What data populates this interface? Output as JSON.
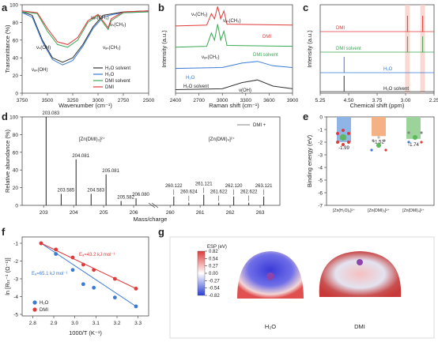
{
  "colors": {
    "black": "#333333",
    "blue": "#3a7bd5",
    "green": "#3aa655",
    "red": "#e03a3a",
    "pinkbar": "#f4b183",
    "bluebar": "#8fb4e6",
    "greenbar": "#9bd39b"
  },
  "panels": {
    "a": {
      "letter": "a",
      "ylabel": "Transmittance (%)",
      "xlabel": "Wavenumber (cm⁻¹)",
      "xticks": [
        "3750",
        "3500",
        "3250",
        "3000",
        "2750",
        "2500"
      ],
      "yticks": [
        "100",
        "80",
        "60",
        "40",
        "20",
        "0"
      ],
      "annotations": [
        "νₐₛ(CH₃)",
        "νₛ(CH₃)",
        "νₛ(OH)",
        "νₐₛ(CH₂)",
        "νₐₛ(OH)"
      ],
      "legend": [
        "H₂O solvent",
        "H₂O",
        "DMI solvent",
        "DMI"
      ]
    },
    "b": {
      "letter": "b",
      "ylabel": "Intensity (a.u.)",
      "xlabel": "Raman shift (cm⁻¹)",
      "xticks": [
        "2400",
        "2700",
        "3000",
        "3300",
        "3600",
        "3900"
      ],
      "annotations": [
        "νₛ(CH₃)",
        "νₐₛ(CH₃)",
        "νₐₛ(CH₂)",
        "ν(OH)"
      ],
      "labels": [
        "DMI",
        "DMI solvent",
        "H₂O",
        "H₂O solvent"
      ]
    },
    "c": {
      "letter": "c",
      "ylabel": "Intensity (a.u.)",
      "xlabel": "Chemical shift (ppm)",
      "xticks": [
        "5.25",
        "4.50",
        "3.75",
        "3.00",
        "2.25"
      ],
      "labels": [
        "DMI",
        "DMI solvent",
        "H₂O",
        "H₂O solvent"
      ]
    },
    "d": {
      "letter": "d",
      "ylabel": "Relative abundance (%)",
      "xlabel": "Mass/charge",
      "legend": "DMI +",
      "yticks": [
        "100",
        "80",
        "60",
        "40",
        "20",
        "0"
      ],
      "xticks_left": [
        "203",
        "204",
        "205",
        "206"
      ],
      "xticks_right": [
        "260",
        "261",
        "262",
        "263"
      ],
      "group_labels": [
        "[Zn(DMI)₃]²⁺",
        "[Zn(DMI)₄]²⁺"
      ]
    },
    "e": {
      "letter": "e",
      "ylabel": "Binding energy (eV)",
      "yticks": [
        "0",
        "-1",
        "-2",
        "-3",
        "-4",
        "-5",
        "-6",
        "-7"
      ]
    },
    "f": {
      "letter": "f",
      "ylabel": "ln [Rₜₜ⁻¹ (Ω⁻¹)]",
      "xlabel": "1000/T (K⁻¹)",
      "xticks": [
        "2.8",
        "2.9",
        "3.0",
        "3.1",
        "3.2",
        "3.3"
      ],
      "yticks": [
        "-1",
        "-2",
        "-3",
        "-4",
        "-5"
      ],
      "ea_dmi": "Eₐ=43.2 kJ mol⁻¹",
      "ea_h2o": "Eₐ=65.1 kJ mol⁻¹",
      "legend": [
        "H₂O",
        "DMI"
      ]
    },
    "g": {
      "letter": "g",
      "colorbar_title": "ESP (eV)",
      "colorbar_ticks": [
        "0.82",
        "0.54",
        "0.27",
        "0.00",
        "-0.27",
        "-0.54",
        "-0.82"
      ],
      "labels": [
        "H₂O",
        "DMI"
      ]
    }
  },
  "chart_data": [
    {
      "panel": "a",
      "type": "line",
      "xlim": [
        3750,
        2500
      ],
      "ylim": [
        0,
        100
      ],
      "series": [
        {
          "name": "H₂O solvent",
          "points": [
            [
              3750,
              92
            ],
            [
              3650,
              88
            ],
            [
              3550,
              60
            ],
            [
              3450,
              40
            ],
            [
              3350,
              35
            ],
            [
              3250,
              40
            ],
            [
              3150,
              55
            ],
            [
              3050,
              75
            ],
            [
              2950,
              88
            ],
            [
              2850,
              90
            ],
            [
              2750,
              92
            ],
            [
              2500,
              93
            ]
          ]
        },
        {
          "name": "H₂O",
          "points": [
            [
              3750,
              91
            ],
            [
              3650,
              86
            ],
            [
              3550,
              58
            ],
            [
              3450,
              38
            ],
            [
              3350,
              32
            ],
            [
              3250,
              37
            ],
            [
              3150,
              53
            ],
            [
              3050,
              73
            ],
            [
              2950,
              86
            ],
            [
              2850,
              89
            ],
            [
              2750,
              91
            ],
            [
              2500,
              92
            ]
          ]
        },
        {
          "name": "DMI solvent",
          "points": [
            [
              3750,
              92
            ],
            [
              3600,
              90
            ],
            [
              3500,
              70
            ],
            [
              3400,
              55
            ],
            [
              3300,
              52
            ],
            [
              3200,
              60
            ],
            [
              3100,
              80
            ],
            [
              3000,
              88
            ],
            [
              2940,
              78
            ],
            [
              2900,
              72
            ],
            [
              2870,
              82
            ],
            [
              2750,
              91
            ],
            [
              2500,
              92
            ]
          ]
        },
        {
          "name": "DMI",
          "points": [
            [
              3750,
              93
            ],
            [
              3600,
              91
            ],
            [
              3500,
              73
            ],
            [
              3400,
              58
            ],
            [
              3300,
              55
            ],
            [
              3200,
              63
            ],
            [
              3100,
              82
            ],
            [
              3000,
              89
            ],
            [
              2940,
              80
            ],
            [
              2900,
              74
            ],
            [
              2870,
              84
            ],
            [
              2750,
              92
            ],
            [
              2500,
              93
            ]
          ]
        }
      ]
    },
    {
      "panel": "b",
      "type": "line",
      "xlim": [
        2400,
        3900
      ],
      "series": [
        {
          "name": "DMI",
          "points": [
            [
              2400,
              0.76
            ],
            [
              2800,
              0.77
            ],
            [
              2860,
              0.9
            ],
            [
              2900,
              0.84
            ],
            [
              2940,
              0.98
            ],
            [
              2980,
              0.84
            ],
            [
              3020,
              0.93
            ],
            [
              3060,
              0.78
            ],
            [
              3900,
              0.77
            ]
          ]
        },
        {
          "name": "DMI solvent",
          "points": [
            [
              2400,
              0.52
            ],
            [
              2800,
              0.53
            ],
            [
              2860,
              0.68
            ],
            [
              2900,
              0.6
            ],
            [
              2940,
              0.78
            ],
            [
              2980,
              0.6
            ],
            [
              3020,
              0.7
            ],
            [
              3060,
              0.54
            ],
            [
              3900,
              0.53
            ]
          ]
        },
        {
          "name": "H₂O",
          "points": [
            [
              2400,
              0.28
            ],
            [
              3000,
              0.29
            ],
            [
              3250,
              0.34
            ],
            [
              3450,
              0.36
            ],
            [
              3650,
              0.31
            ],
            [
              3900,
              0.29
            ]
          ]
        },
        {
          "name": "H₂O solvent",
          "points": [
            [
              2400,
              0.04
            ],
            [
              3000,
              0.05
            ],
            [
              3250,
              0.12
            ],
            [
              3450,
              0.15
            ],
            [
              3650,
              0.08
            ],
            [
              3900,
              0.05
            ]
          ]
        }
      ]
    },
    {
      "panel": "c",
      "type": "line",
      "xlim": [
        5.25,
        2.25
      ],
      "series": [
        {
          "name": "DMI",
          "peaks": [
            2.95,
            2.55
          ]
        },
        {
          "name": "DMI solvent",
          "peaks": [
            2.95,
            2.55
          ]
        },
        {
          "name": "H₂O",
          "peaks": [
            4.62
          ]
        },
        {
          "name": "H₂O solvent",
          "peaks": [
            4.62
          ]
        }
      ]
    },
    {
      "panel": "d",
      "type": "bar",
      "ylim": [
        0,
        100
      ],
      "series": [
        {
          "name": "[Zn(DMI)₃]²⁺",
          "peaks": [
            {
              "mz": "203.083",
              "x": 203.083,
              "y": 100
            },
            {
              "mz": "203.585",
              "x": 203.585,
              "y": 13
            },
            {
              "mz": "204.081",
              "x": 204.081,
              "y": 52
            },
            {
              "mz": "204.583",
              "x": 204.583,
              "y": 13
            },
            {
              "mz": "205.081",
              "x": 205.081,
              "y": 35
            },
            {
              "mz": "205.582",
              "x": 205.582,
              "y": 5
            },
            {
              "mz": "206.080",
              "x": 206.08,
              "y": 8
            }
          ]
        },
        {
          "name": "[Zn(DMI)₄]²⁺",
          "peaks": [
            {
              "mz": "260.122",
              "x": 260.122,
              "y": 10
            },
            {
              "mz": "260.624",
              "x": 260.624,
              "y": 3
            },
            {
              "mz": "261.121",
              "x": 261.121,
              "y": 12
            },
            {
              "mz": "261.622",
              "x": 261.622,
              "y": 3
            },
            {
              "mz": "262.120",
              "x": 262.12,
              "y": 10
            },
            {
              "mz": "262.622",
              "x": 262.622,
              "y": 3
            },
            {
              "mz": "263.121",
              "x": 263.121,
              "y": 10
            }
          ]
        }
      ]
    },
    {
      "panel": "e",
      "type": "bar",
      "ylim": [
        -7,
        0
      ],
      "categories": [
        "[Zn(H₂O)₆]²⁺",
        "[Zn(DMI)₃]²⁺",
        "[Zn(DMI)₄]²⁺"
      ],
      "values": [
        -1.99,
        -1.52,
        -1.74
      ],
      "value_labels": [
        "-1.99",
        "-1.52",
        "-1.74"
      ]
    },
    {
      "panel": "f",
      "type": "scatter",
      "xlim": [
        2.75,
        3.35
      ],
      "ylim": [
        -5,
        -1
      ],
      "series": [
        {
          "name": "H₂O",
          "points": [
            [
              2.84,
              -1.0
            ],
            [
              2.91,
              -1.6
            ],
            [
              2.99,
              -2.5
            ],
            [
              3.04,
              -3.3
            ],
            [
              3.09,
              -3.5
            ],
            [
              3.19,
              -4.05
            ],
            [
              3.29,
              -4.55
            ]
          ]
        },
        {
          "name": "DMI",
          "points": [
            [
              2.84,
              -1.0
            ],
            [
              2.91,
              -1.35
            ],
            [
              2.99,
              -1.8
            ],
            [
              3.04,
              -2.2
            ],
            [
              3.09,
              -2.5
            ],
            [
              3.19,
              -3.0
            ],
            [
              3.29,
              -3.55
            ]
          ]
        }
      ]
    }
  ]
}
